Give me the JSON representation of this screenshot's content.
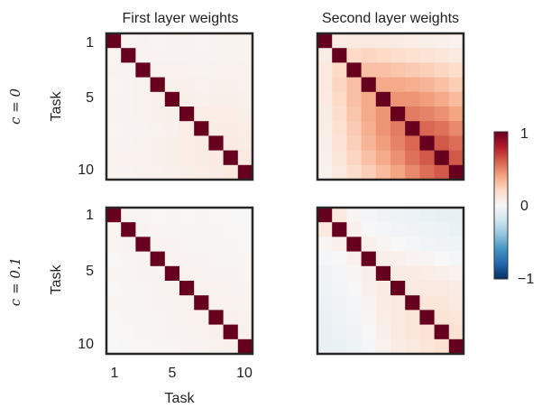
{
  "chart_data": [
    {
      "type": "heatmap",
      "panel": "c0-first",
      "title": "First layer weights",
      "row_label": "c = 0",
      "ylabel": "Task",
      "xlabel": "",
      "n": 10,
      "values": [
        [
          1.0,
          0.02,
          0.03,
          0.02,
          0.03,
          0.03,
          0.02,
          0.03,
          0.04,
          0.03
        ],
        [
          0.02,
          1.0,
          0.03,
          0.03,
          0.03,
          0.03,
          0.03,
          0.03,
          0.04,
          0.03
        ],
        [
          0.03,
          0.03,
          1.0,
          0.04,
          0.04,
          0.04,
          0.03,
          0.04,
          0.04,
          0.04
        ],
        [
          0.02,
          0.03,
          0.04,
          1.0,
          0.05,
          0.05,
          0.04,
          0.05,
          0.05,
          0.04
        ],
        [
          0.03,
          0.03,
          0.04,
          0.05,
          1.0,
          0.06,
          0.05,
          0.06,
          0.06,
          0.05
        ],
        [
          0.03,
          0.03,
          0.04,
          0.05,
          0.06,
          1.0,
          0.07,
          0.07,
          0.07,
          0.06
        ],
        [
          0.02,
          0.03,
          0.03,
          0.04,
          0.05,
          0.07,
          1.0,
          0.08,
          0.08,
          0.07
        ],
        [
          0.03,
          0.03,
          0.04,
          0.05,
          0.06,
          0.07,
          0.08,
          1.0,
          0.09,
          0.08
        ],
        [
          0.04,
          0.04,
          0.04,
          0.05,
          0.06,
          0.07,
          0.08,
          0.09,
          1.0,
          0.1
        ],
        [
          0.03,
          0.03,
          0.04,
          0.04,
          0.05,
          0.06,
          0.07,
          0.08,
          0.1,
          1.0
        ]
      ]
    },
    {
      "type": "heatmap",
      "panel": "c0-second",
      "title": "Second layer weights",
      "row_label": "c = 0",
      "ylabel": "",
      "xlabel": "",
      "n": 10,
      "values": [
        [
          1.0,
          0.08,
          0.1,
          0.1,
          0.09,
          0.08,
          0.07,
          0.06,
          0.05,
          0.04
        ],
        [
          0.08,
          1.0,
          0.2,
          0.22,
          0.2,
          0.18,
          0.16,
          0.14,
          0.12,
          0.1
        ],
        [
          0.1,
          0.2,
          1.0,
          0.3,
          0.3,
          0.28,
          0.26,
          0.24,
          0.22,
          0.18
        ],
        [
          0.1,
          0.22,
          0.3,
          1.0,
          0.38,
          0.38,
          0.36,
          0.34,
          0.3,
          0.25
        ],
        [
          0.09,
          0.2,
          0.3,
          0.38,
          1.0,
          0.45,
          0.45,
          0.42,
          0.38,
          0.32
        ],
        [
          0.08,
          0.18,
          0.28,
          0.38,
          0.45,
          1.0,
          0.52,
          0.5,
          0.46,
          0.4
        ],
        [
          0.07,
          0.16,
          0.26,
          0.36,
          0.45,
          0.52,
          1.0,
          0.58,
          0.55,
          0.48
        ],
        [
          0.06,
          0.14,
          0.24,
          0.34,
          0.42,
          0.5,
          0.58,
          1.0,
          0.62,
          0.56
        ],
        [
          0.05,
          0.12,
          0.22,
          0.3,
          0.38,
          0.46,
          0.55,
          0.62,
          1.0,
          0.62
        ],
        [
          0.04,
          0.1,
          0.18,
          0.25,
          0.32,
          0.4,
          0.48,
          0.56,
          0.62,
          1.0
        ]
      ]
    },
    {
      "type": "heatmap",
      "panel": "c01-first",
      "title": "",
      "row_label": "c = 0.1",
      "ylabel": "Task",
      "xlabel": "Task",
      "n": 10,
      "values": [
        [
          1.0,
          0.02,
          0.02,
          0.01,
          0.02,
          0.01,
          0.02,
          0.01,
          0.01,
          0.0
        ],
        [
          0.02,
          1.0,
          0.03,
          0.02,
          0.02,
          0.02,
          0.02,
          0.02,
          0.01,
          0.01
        ],
        [
          0.02,
          0.03,
          1.0,
          0.03,
          0.03,
          0.02,
          0.02,
          0.02,
          0.02,
          0.01
        ],
        [
          0.01,
          0.02,
          0.03,
          1.0,
          0.03,
          0.03,
          0.03,
          0.02,
          0.02,
          0.02
        ],
        [
          0.02,
          0.02,
          0.03,
          0.03,
          1.0,
          0.04,
          0.03,
          0.03,
          0.03,
          0.02
        ],
        [
          0.01,
          0.02,
          0.02,
          0.03,
          0.04,
          1.0,
          0.04,
          0.04,
          0.03,
          0.03
        ],
        [
          0.02,
          0.02,
          0.02,
          0.03,
          0.03,
          0.04,
          1.0,
          0.04,
          0.04,
          0.03
        ],
        [
          0.01,
          0.02,
          0.02,
          0.02,
          0.03,
          0.04,
          0.04,
          1.0,
          0.05,
          0.04
        ],
        [
          0.01,
          0.01,
          0.02,
          0.02,
          0.03,
          0.03,
          0.04,
          0.05,
          1.0,
          0.05
        ],
        [
          0.0,
          0.01,
          0.01,
          0.02,
          0.02,
          0.03,
          0.03,
          0.04,
          0.05,
          1.0
        ]
      ]
    },
    {
      "type": "heatmap",
      "panel": "c01-second",
      "title": "",
      "row_label": "c = 0.1",
      "ylabel": "",
      "xlabel": "",
      "n": 10,
      "values": [
        [
          1.0,
          0.1,
          0.02,
          -0.02,
          -0.04,
          -0.05,
          -0.06,
          -0.07,
          -0.08,
          -0.08
        ],
        [
          0.1,
          1.0,
          0.05,
          0.0,
          -0.02,
          -0.03,
          -0.04,
          -0.05,
          -0.06,
          -0.07
        ],
        [
          0.02,
          0.05,
          1.0,
          0.05,
          0.02,
          0.0,
          -0.02,
          -0.03,
          -0.04,
          -0.05
        ],
        [
          -0.02,
          0.0,
          0.05,
          1.0,
          0.06,
          0.05,
          0.03,
          0.02,
          0.0,
          -0.02
        ],
        [
          -0.04,
          -0.02,
          0.02,
          0.06,
          1.0,
          0.08,
          0.08,
          0.07,
          0.06,
          0.04
        ],
        [
          -0.05,
          -0.03,
          0.0,
          0.05,
          0.08,
          1.0,
          0.1,
          0.1,
          0.1,
          0.08
        ],
        [
          -0.06,
          -0.04,
          -0.02,
          0.03,
          0.08,
          0.1,
          1.0,
          0.12,
          0.12,
          0.1
        ],
        [
          -0.07,
          -0.05,
          -0.03,
          0.02,
          0.07,
          0.1,
          0.12,
          1.0,
          0.14,
          0.13
        ],
        [
          -0.08,
          -0.06,
          -0.04,
          0.0,
          0.06,
          0.1,
          0.12,
          0.14,
          1.0,
          0.15
        ],
        [
          -0.08,
          -0.07,
          -0.05,
          -0.02,
          0.04,
          0.08,
          0.1,
          0.13,
          0.15,
          1.0
        ]
      ]
    }
  ],
  "tick_labels": {
    "top": "1",
    "mid": "5",
    "bottom": "10"
  },
  "colorbar": {
    "range": [
      -1,
      1
    ],
    "tick_max": "1",
    "tick_zero": "0",
    "tick_min": "−1",
    "colormap": "RdBu_r"
  }
}
